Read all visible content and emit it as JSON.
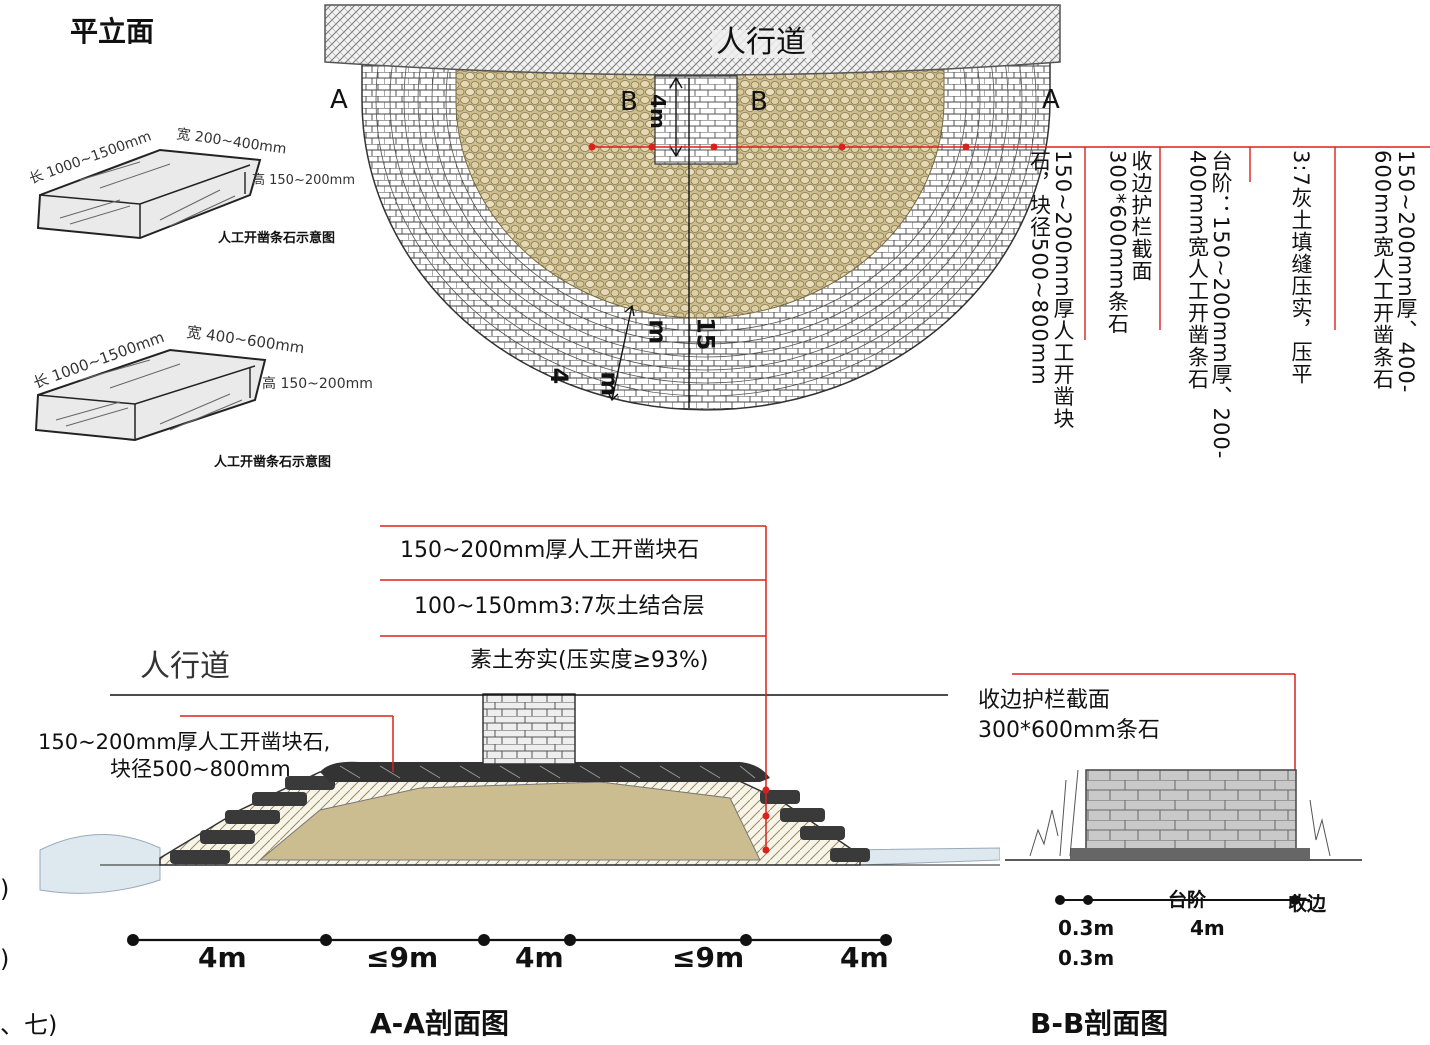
{
  "plan": {
    "title": "平立面",
    "walkway": "人行道",
    "label_a_left": "A",
    "label_a_right": "A",
    "label_b_left": "B",
    "label_b_right": "B",
    "dim_4m_top": "4m",
    "dim_15": "15",
    "dim_m": "m",
    "dim_4": "4",
    "dim_m2": "m",
    "callouts": [
      "150~200mm厚、400-600mm宽人工开凿条石",
      "3:7灰土填缝压实，压平",
      "台阶：150~200mm厚、200-400mm宽人工开凿条石",
      "收边护栏截面300*600mm条石",
      "150~200mm厚人工开凿块石，块径500~800mm"
    ]
  },
  "stone_sketch_1": {
    "length": "长 1000~1500mm",
    "width": "宽 200~400mm",
    "height": "高 150~200mm",
    "caption": "人工开凿条石示意图"
  },
  "stone_sketch_2": {
    "length": "长 1000~1500mm",
    "width": "宽 400~600mm",
    "height": "高 150~200mm",
    "caption": "人工开凿条石示意图"
  },
  "section_aa": {
    "layers": [
      "150~200mm厚人工开凿块石",
      "100~150mm3:7灰土结合层",
      "素土夯实(压实度≥93%)"
    ],
    "walkway": "人行道",
    "rock_label_1": "150~200mm厚人工开凿块石,",
    "rock_label_2": "块径500~800mm",
    "dims": [
      "4m",
      "≤9m",
      "4m",
      "≤9m",
      "4m"
    ],
    "title": "A-A剖面图"
  },
  "section_bb": {
    "label_1": "收边护栏截面",
    "label_2": "300*600mm条石",
    "step_label": "台阶",
    "edge_label": "收边",
    "dim_a": "0.3m",
    "dim_b": "4m",
    "dim_c": "0.3m",
    "title": "B-B剖面图"
  },
  "edge_fragments": [
    ")",
    ")",
    "、七)"
  ],
  "colors": {
    "callout_red": "#d9221c",
    "gravel": "#c8b98a",
    "brick": "#ffffff",
    "soil": "#cfc39a"
  }
}
